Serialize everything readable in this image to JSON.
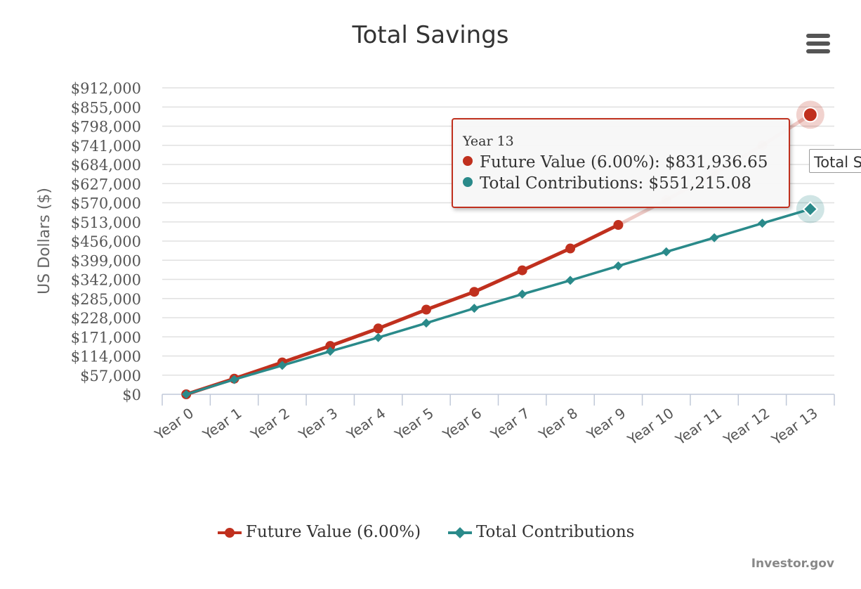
{
  "chart_data": {
    "type": "line",
    "title": "Total Savings",
    "ylabel": "US Dollars ($)",
    "categories": [
      "Year 0",
      "Year 1",
      "Year 2",
      "Year 3",
      "Year 4",
      "Year 5",
      "Year 6",
      "Year 7",
      "Year 8",
      "Year 9",
      "Year 10",
      "Year 11",
      "Year 12",
      "Year 13"
    ],
    "yticks": [
      "$0",
      "$57,000",
      "$114,000",
      "$171,000",
      "$228,000",
      "$285,000",
      "$342,000",
      "$399,000",
      "$456,000",
      "$513,000",
      "$570,000",
      "$627,000",
      "$684,000",
      "$741,000",
      "$798,000",
      "$855,000",
      "$912,000"
    ],
    "ylim": [
      0,
      912000
    ],
    "grid": true,
    "legend_position": "bottom-center",
    "series": [
      {
        "name": "Future Value (6.00%)",
        "color": "#c0301e",
        "marker": "circle",
        "values": [
          0,
          46500,
          95000,
          144000,
          196000,
          252000,
          305000,
          369000,
          434000,
          504000,
          578000,
          657000,
          741000,
          831936.65
        ]
      },
      {
        "name": "Total Contributions",
        "color": "#2a8a8a",
        "marker": "diamond",
        "values": [
          0,
          44000,
          86000,
          128000,
          169000,
          212000,
          256000,
          298000,
          339000,
          382000,
          424000,
          466000,
          509000,
          551215.08
        ]
      }
    ],
    "tooltip": {
      "header": "Year 13",
      "rows": [
        {
          "label": "Future Value (6.00%): ",
          "value": "$831,936.65"
        },
        {
          "label": "Total Contributions: ",
          "value": "$551,215.08"
        }
      ]
    },
    "clipped_tooltip": "Total S",
    "credit": "Investor.gov"
  }
}
